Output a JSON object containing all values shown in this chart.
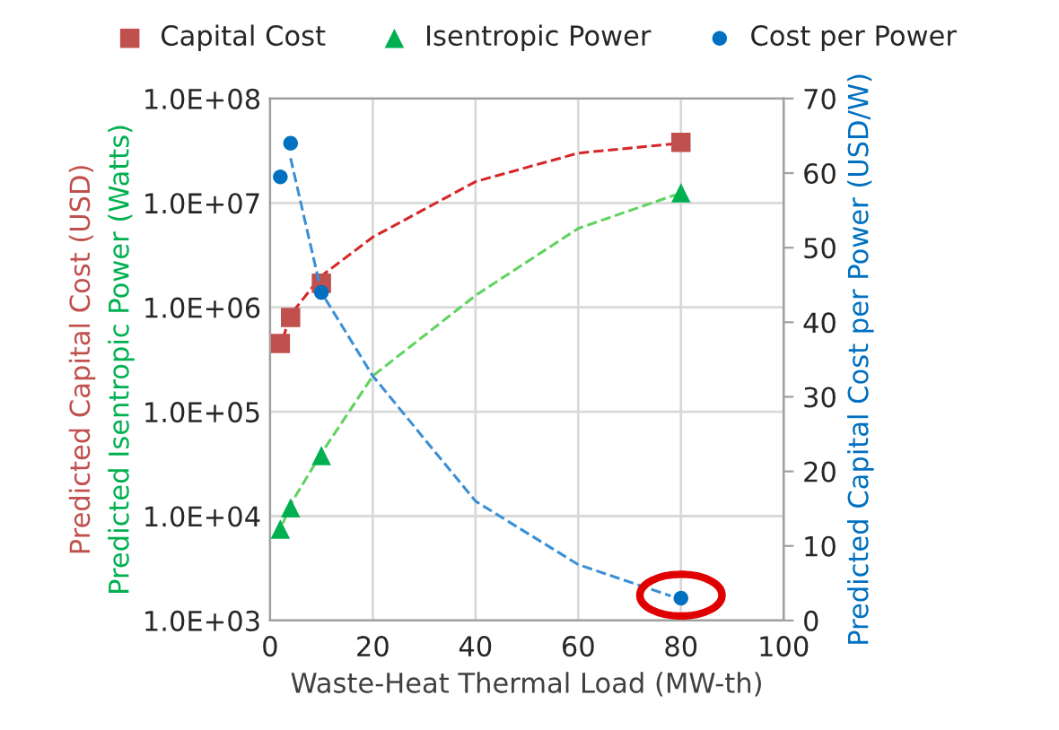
{
  "chart_data": {
    "type": "scatter",
    "xlabel": "Waste-Heat Thermal Load (MW-th)",
    "ylabel": "Predicted Capital Cost (USD)",
    "y2label": "Predicted Capital Cost per Power (USD/W)",
    "annotations": [
      "Predicted Isentropic Power (Watts)"
    ],
    "log": "y",
    "grid": true,
    "legend": "top",
    "xlim": [
      0,
      100
    ],
    "xticks": [
      0,
      20,
      40,
      60,
      80,
      100
    ],
    "ylim": [
      1000,
      100000000
    ],
    "yticks": [
      {
        "value": 1000,
        "label": "1.0E+03"
      },
      {
        "value": 10000,
        "label": "1.0E+04"
      },
      {
        "value": 100000,
        "label": "1.0E+05"
      },
      {
        "value": 1000000,
        "label": "1.0E+06"
      },
      {
        "value": 10000000,
        "label": "1.0E+07"
      },
      {
        "value": 100000000,
        "label": "1.0E+08"
      }
    ],
    "y2lim": [
      0,
      70
    ],
    "y2ticks": [
      0,
      10,
      20,
      30,
      40,
      50,
      60,
      70
    ],
    "series": [
      {
        "name": "Capital Cost",
        "color": "#c0504d",
        "marker": "square",
        "x": [
          2,
          4,
          10,
          80
        ],
        "values": [
          450000,
          800000,
          1700000,
          38000000
        ]
      },
      {
        "name": "Isentropic Power",
        "color": "#00b050",
        "marker": "triangle",
        "x": [
          2,
          4,
          10,
          80
        ],
        "values": [
          7500,
          12000,
          38000,
          12500000
        ]
      },
      {
        "name": "Cost per Power",
        "color": "#0070c0",
        "marker": "circle",
        "axis": "y2",
        "x": [
          2,
          4,
          10,
          80
        ],
        "values": [
          59.5,
          64,
          44,
          3
        ]
      },
      {
        "type": "line",
        "color": "#d62728",
        "line_style": "dashed",
        "marker": "none",
        "x": [
          2.5,
          4,
          10,
          20,
          40,
          60,
          79
        ],
        "values": [
          500000,
          850000,
          2000000,
          4700000,
          16000000,
          30000000,
          37000000
        ]
      },
      {
        "type": "line",
        "color": "#5fd35f",
        "line_style": "dashed",
        "marker": "none",
        "x": [
          2.5,
          4,
          10,
          20,
          40,
          60,
          79
        ],
        "values": [
          8500,
          13000,
          40000,
          220000,
          1300000,
          5700000,
          12000000
        ]
      },
      {
        "type": "line",
        "color": "#3a8fd6",
        "line_style": "dashed",
        "marker": "none",
        "axis": "y2",
        "x": [
          4,
          10,
          20,
          40,
          60,
          78
        ],
        "values": [
          62,
          44,
          32.8,
          16,
          7.5,
          3.3
        ]
      }
    ]
  }
}
